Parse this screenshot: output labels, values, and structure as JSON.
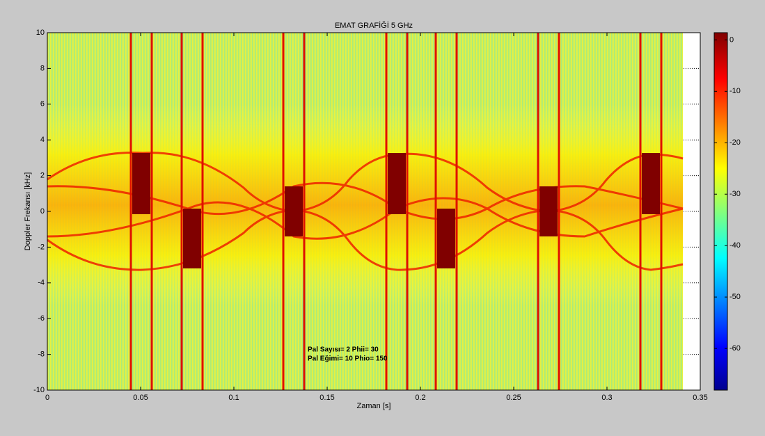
{
  "chart_data": {
    "type": "spectrogram",
    "title": "EMAT GRAFİĞİ 5 GHz",
    "x_label": "Zaman [s]",
    "y_label": "Doppler Frekansı [kHz]",
    "xlim": [
      0,
      0.35
    ],
    "xticks": [
      0,
      0.05,
      0.1,
      0.15,
      0.2,
      0.25,
      0.3,
      0.35
    ],
    "ylim": [
      -10,
      10
    ],
    "yticks": [
      -10,
      -8,
      -6,
      -4,
      -2,
      0,
      2,
      4,
      6,
      8,
      10
    ],
    "colorbar": {
      "lim": [
        -68.1,
        1.4
      ],
      "ticks": [
        0,
        -10,
        -20,
        -30,
        -40,
        -50,
        -60
      ],
      "colormap": "jet"
    },
    "annotations": [
      "Pal Sayısı= 2 Phii= 30",
      "Pal Eğimi= 10 Phio= 150"
    ]
  }
}
